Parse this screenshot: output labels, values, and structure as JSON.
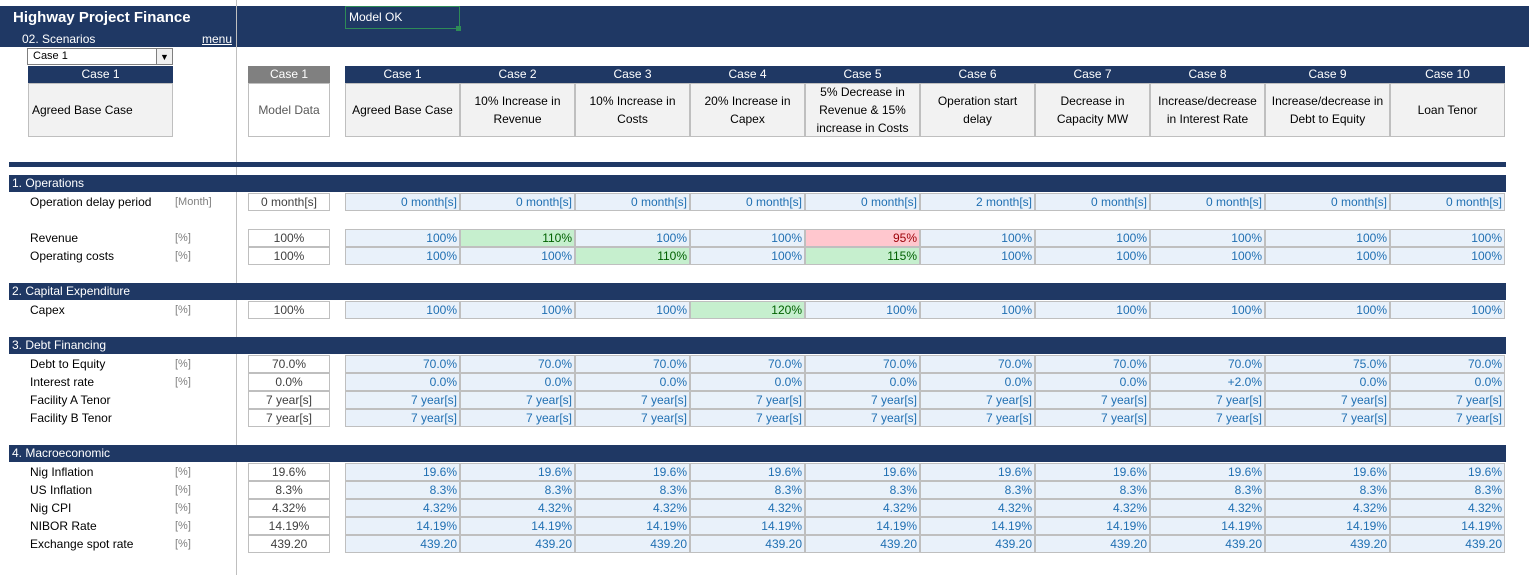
{
  "app": {
    "title": "Highway Project Finance",
    "sheet": "02. Scenarios",
    "menu_label": "menu",
    "status": "Model OK"
  },
  "selector": {
    "selected": "Case 1",
    "case_label": "Case 1",
    "case_desc": "Agreed Base Case"
  },
  "model": {
    "head": "Case 1",
    "desc": "Model Data"
  },
  "cases": [
    {
      "head": "Case 1",
      "desc": "Agreed Base Case"
    },
    {
      "head": "Case 2",
      "desc": "10% Increase in Revenue"
    },
    {
      "head": "Case 3",
      "desc": "10% Increase in Costs"
    },
    {
      "head": "Case 4",
      "desc": "20% Increase in Capex"
    },
    {
      "head": "Case 5",
      "desc": "5% Decrease in Revenue & 15% increase in Costs"
    },
    {
      "head": "Case 6",
      "desc": "Operation start delay"
    },
    {
      "head": "Case 7",
      "desc": "Decrease in Capacity MW"
    },
    {
      "head": "Case 8",
      "desc": "Increase/decrease in Interest Rate"
    },
    {
      "head": "Case 9",
      "desc": "Increase/decrease in Debt to Equity"
    },
    {
      "head": "Case 10",
      "desc": "Loan Tenor"
    }
  ],
  "sections": [
    {
      "title": "1. Operations"
    },
    {
      "title": "2. Capital Expenditure"
    },
    {
      "title": "3. Debt Financing"
    },
    {
      "title": "4. Macroeconomic"
    }
  ],
  "rows": [
    {
      "label": "Operation delay period",
      "unit": "[Month]",
      "model": "0 month[s]",
      "values": [
        "0 month[s]",
        "0 month[s]",
        "0 month[s]",
        "0 month[s]",
        "0 month[s]",
        "2 month[s]",
        "0 month[s]",
        "0 month[s]",
        "0 month[s]",
        "0 month[s]"
      ]
    },
    {
      "label": "Revenue",
      "unit": "[%]",
      "model": "100%",
      "values": [
        "100%",
        "110%",
        "100%",
        "100%",
        "95%",
        "100%",
        "100%",
        "100%",
        "100%",
        "100%"
      ]
    },
    {
      "label": "Operating costs",
      "unit": "[%]",
      "model": "100%",
      "values": [
        "100%",
        "100%",
        "110%",
        "100%",
        "115%",
        "100%",
        "100%",
        "100%",
        "100%",
        "100%"
      ]
    },
    {
      "label": "Capex",
      "unit": "[%]",
      "model": "100%",
      "values": [
        "100%",
        "100%",
        "100%",
        "120%",
        "100%",
        "100%",
        "100%",
        "100%",
        "100%",
        "100%"
      ]
    },
    {
      "label": "Debt to Equity",
      "unit": "[%]",
      "model": "70.0%",
      "values": [
        "70.0%",
        "70.0%",
        "70.0%",
        "70.0%",
        "70.0%",
        "70.0%",
        "70.0%",
        "70.0%",
        "75.0%",
        "70.0%"
      ]
    },
    {
      "label": "Interest rate",
      "unit": "[%]",
      "model": "0.0%",
      "values": [
        "0.0%",
        "0.0%",
        "0.0%",
        "0.0%",
        "0.0%",
        "0.0%",
        "0.0%",
        "+2.0%",
        "0.0%",
        "0.0%"
      ]
    },
    {
      "label": "Facility A Tenor",
      "unit": "",
      "model": "7 year[s]",
      "values": [
        "7 year[s]",
        "7 year[s]",
        "7 year[s]",
        "7 year[s]",
        "7 year[s]",
        "7 year[s]",
        "7 year[s]",
        "7 year[s]",
        "7 year[s]",
        "7 year[s]"
      ]
    },
    {
      "label": "Facility B Tenor",
      "unit": "",
      "model": "7 year[s]",
      "values": [
        "7 year[s]",
        "7 year[s]",
        "7 year[s]",
        "7 year[s]",
        "7 year[s]",
        "7 year[s]",
        "7 year[s]",
        "7 year[s]",
        "7 year[s]",
        "7 year[s]"
      ]
    },
    {
      "label": "Nig Inflation",
      "unit": "[%]",
      "model": "19.6%",
      "values": [
        "19.6%",
        "19.6%",
        "19.6%",
        "19.6%",
        "19.6%",
        "19.6%",
        "19.6%",
        "19.6%",
        "19.6%",
        "19.6%"
      ]
    },
    {
      "label": "US Inflation",
      "unit": "[%]",
      "model": "8.3%",
      "values": [
        "8.3%",
        "8.3%",
        "8.3%",
        "8.3%",
        "8.3%",
        "8.3%",
        "8.3%",
        "8.3%",
        "8.3%",
        "8.3%"
      ]
    },
    {
      "label": "Nig CPI",
      "unit": "[%]",
      "model": "4.32%",
      "values": [
        "4.32%",
        "4.32%",
        "4.32%",
        "4.32%",
        "4.32%",
        "4.32%",
        "4.32%",
        "4.32%",
        "4.32%",
        "4.32%"
      ]
    },
    {
      "label": "NIBOR Rate",
      "unit": "[%]",
      "model": "14.19%",
      "values": [
        "14.19%",
        "14.19%",
        "14.19%",
        "14.19%",
        "14.19%",
        "14.19%",
        "14.19%",
        "14.19%",
        "14.19%",
        "14.19%"
      ]
    },
    {
      "label": "Exchange spot rate",
      "unit": "[%]",
      "model": "439.20",
      "values": [
        "439.20",
        "439.20",
        "439.20",
        "439.20",
        "439.20",
        "439.20",
        "439.20",
        "439.20",
        "439.20",
        "439.20"
      ]
    }
  ],
  "colors": {
    "navy": "#1f3864",
    "input_blue": "#1f6fb2",
    "increase_fill": "#c6efce",
    "decrease_fill": "#ffc7ce"
  }
}
